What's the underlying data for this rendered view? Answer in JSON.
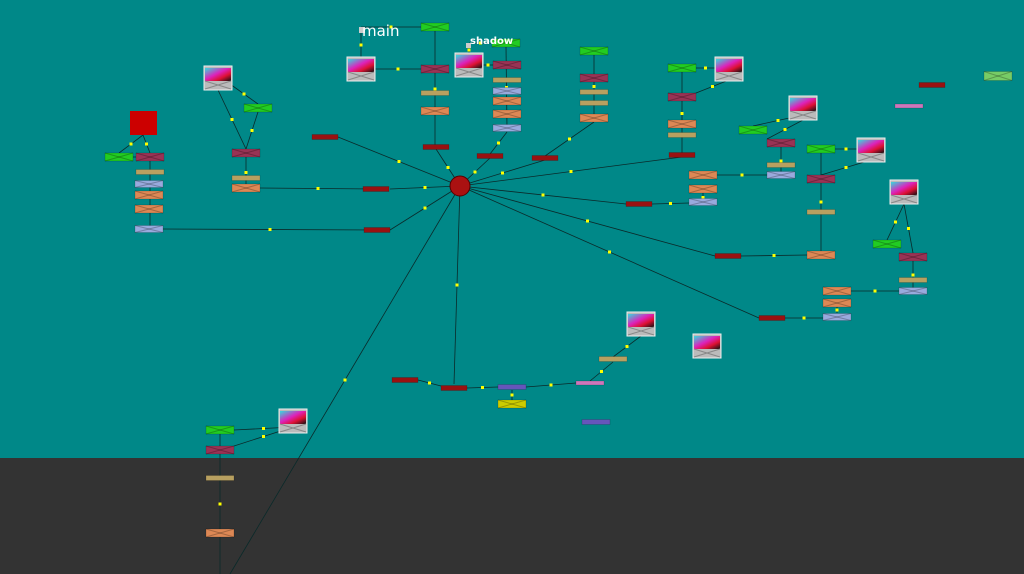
{
  "backdrops": [
    {
      "label": "main"
    },
    {
      "label": "shadow"
    }
  ],
  "colors": {
    "canvas": "#008888",
    "lower_area": "#333333",
    "edge": "#0a2a2a",
    "edge_dot": "#ffff00",
    "merge": "#22cc22",
    "grade": "#993355",
    "tan": "#b8a060",
    "blue": "#99aadd",
    "orange": "#dd8855",
    "dot": "#991111",
    "hub": "#aa1111",
    "constant": "#cc0000",
    "pink": "#cc77bb",
    "purple": "#6655bb",
    "yellow": "#cccc00",
    "lightgreen": "#77cc66"
  }
}
